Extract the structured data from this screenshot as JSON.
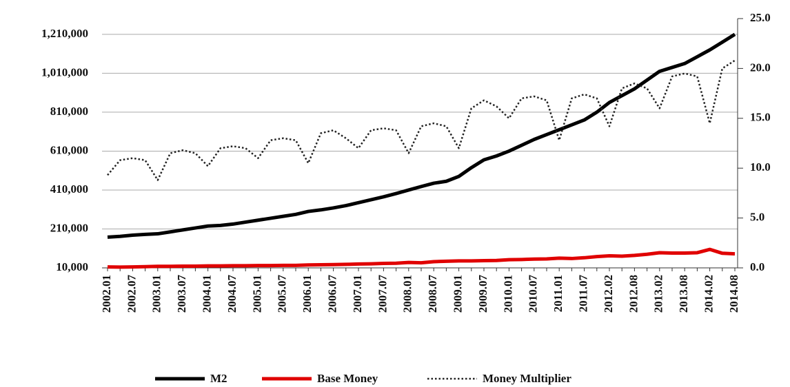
{
  "chart_data": {
    "type": "line",
    "categories": [
      "2002.01",
      null,
      "2002.07",
      null,
      "2003.01",
      null,
      "2003.07",
      null,
      "2004.01",
      null,
      "2004.07",
      null,
      "2005.01",
      null,
      "2005.07",
      null,
      "2006.01",
      null,
      "2006.07",
      null,
      "2007.01",
      null,
      "2007.07",
      null,
      "2008.01",
      null,
      "2008.07",
      null,
      "2009.01",
      null,
      "2009.07",
      null,
      "2010.01",
      null,
      "2010.07",
      null,
      "2011.01",
      null,
      "2011.07",
      null,
      "2012.02",
      null,
      "2012.08",
      null,
      "2013.02",
      null,
      "2013.08",
      null,
      "2014.02",
      null,
      "2014.08"
    ],
    "series": [
      {
        "name": "M2",
        "color": "#000000",
        "style": "solid",
        "values": [
          168000,
          172000,
          178000,
          182000,
          185000,
          195000,
          205000,
          215000,
          225000,
          228000,
          235000,
          245000,
          255000,
          265000,
          275000,
          285000,
          300000,
          308000,
          318000,
          330000,
          345000,
          360000,
          375000,
          392000,
          410000,
          428000,
          445000,
          455000,
          480000,
          525000,
          565000,
          585000,
          610000,
          640000,
          670000,
          695000,
          720000,
          745000,
          770000,
          810000,
          860000,
          895000,
          930000,
          975000,
          1020000,
          1040000,
          1060000,
          1095000,
          1130000,
          1170000,
          1210000
        ]
      },
      {
        "name": "Base Money",
        "color": "#e00000",
        "style": "solid",
        "values": [
          15000,
          14000,
          15000,
          16000,
          18000,
          18000,
          19000,
          19000,
          20000,
          20000,
          21000,
          21000,
          22000,
          22000,
          23000,
          23000,
          25000,
          26000,
          27000,
          28000,
          30000,
          31000,
          33000,
          34000,
          38000,
          36000,
          42000,
          44000,
          46000,
          46000,
          47000,
          48000,
          52000,
          53000,
          55000,
          56000,
          60000,
          58000,
          62000,
          68000,
          72000,
          70000,
          74000,
          80000,
          88000,
          86000,
          86000,
          88000,
          105000,
          85000,
          82000
        ]
      },
      {
        "name": "Money Multiplier",
        "color": "#222222",
        "style": "dotted",
        "axis": "y2",
        "values": [
          9.3,
          10.8,
          11,
          10.8,
          8.8,
          11.5,
          11.8,
          11.5,
          10.2,
          12,
          12.2,
          12,
          11,
          12.8,
          13,
          12.8,
          10.5,
          13.5,
          13.8,
          13,
          12,
          13.8,
          14,
          13.8,
          11.5,
          14.2,
          14.5,
          14.2,
          12,
          16,
          16.8,
          16.2,
          15,
          17,
          17.2,
          16.8,
          12.8,
          17,
          17.4,
          17,
          14.2,
          18,
          18.5,
          18,
          16,
          19.2,
          19.5,
          19.2,
          14.5,
          20,
          20.8
        ]
      }
    ],
    "ylim": [
      10000,
      1291000
    ],
    "yticks": [
      {
        "value": 10000,
        "label": "10,000"
      },
      {
        "value": 210000,
        "label": "210,000"
      },
      {
        "value": 410000,
        "label": "410,000"
      },
      {
        "value": 610000,
        "label": "610,000"
      },
      {
        "value": 810000,
        "label": "810,000"
      },
      {
        "value": 1010000,
        "label": "1,010,000"
      },
      {
        "value": 1210000,
        "label": "1,210,000"
      }
    ],
    "y2lim": [
      0,
      25
    ],
    "y2ticks": [
      {
        "value": 0,
        "label": "0.0"
      },
      {
        "value": 5,
        "label": "5.0"
      },
      {
        "value": 10,
        "label": "10.0"
      },
      {
        "value": 15,
        "label": "15.0"
      },
      {
        "value": 20,
        "label": "20.0"
      },
      {
        "value": 25,
        "label": "25.0"
      }
    ],
    "grid": true,
    "legend": "bottom"
  }
}
